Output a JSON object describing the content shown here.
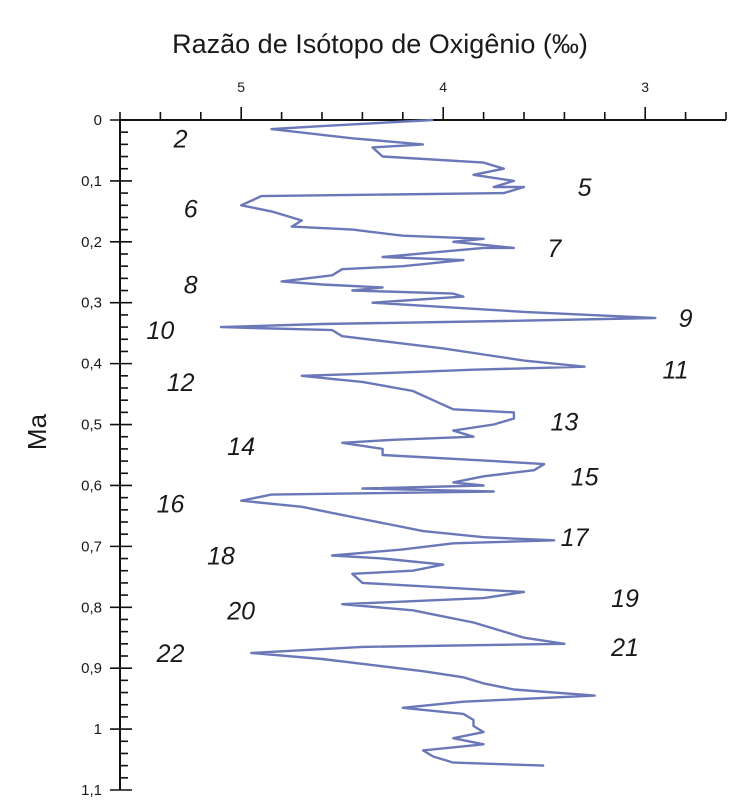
{
  "chart_data": {
    "type": "line",
    "title": "Razão de Isótopo de Oxigênio (‰)",
    "xlabel": "Razão de Isótopo de Oxigênio (‰)",
    "ylabel": "Ma",
    "x_axis": {
      "position": "top",
      "reversed": true,
      "range": [
        5.6,
        2.6
      ],
      "tick_labels": [
        "5",
        "4",
        "3"
      ],
      "tick_values": [
        5,
        4,
        3
      ],
      "minor_step": 0.2
    },
    "y_axis": {
      "reversed": true,
      "range": [
        0,
        1.1
      ],
      "tick_labels": [
        "0",
        "0,1",
        "0,2",
        "0,3",
        "0,4",
        "0,5",
        "0,6",
        "0,7",
        "0,8",
        "0,9",
        "1",
        "1,1"
      ],
      "tick_values": [
        0,
        0.1,
        0.2,
        0.3,
        0.4,
        0.5,
        0.6,
        0.7,
        0.8,
        0.9,
        1.0,
        1.1
      ],
      "minor_step": 0.02
    },
    "grid": false,
    "color": "#6a78b8",
    "series": [
      {
        "points": [
          [
            4.05,
            0.0
          ],
          [
            4.6,
            0.01
          ],
          [
            4.85,
            0.015
          ],
          [
            4.45,
            0.03
          ],
          [
            4.1,
            0.04
          ],
          [
            4.35,
            0.045
          ],
          [
            4.3,
            0.06
          ],
          [
            3.8,
            0.07
          ],
          [
            3.7,
            0.08
          ],
          [
            3.85,
            0.09
          ],
          [
            3.65,
            0.1
          ],
          [
            3.75,
            0.11
          ],
          [
            3.6,
            0.11
          ],
          [
            3.7,
            0.12
          ],
          [
            4.9,
            0.125
          ],
          [
            5.0,
            0.14
          ],
          [
            4.85,
            0.15
          ],
          [
            4.7,
            0.165
          ],
          [
            4.75,
            0.175
          ],
          [
            4.45,
            0.18
          ],
          [
            4.2,
            0.19
          ],
          [
            3.8,
            0.195
          ],
          [
            3.95,
            0.2
          ],
          [
            3.65,
            0.21
          ],
          [
            3.8,
            0.21
          ],
          [
            4.3,
            0.225
          ],
          [
            3.9,
            0.23
          ],
          [
            4.2,
            0.24
          ],
          [
            4.5,
            0.245
          ],
          [
            4.55,
            0.255
          ],
          [
            4.8,
            0.265
          ],
          [
            4.6,
            0.27
          ],
          [
            4.3,
            0.275
          ],
          [
            4.45,
            0.28
          ],
          [
            3.95,
            0.285
          ],
          [
            3.9,
            0.29
          ],
          [
            4.35,
            0.3
          ],
          [
            3.85,
            0.31
          ],
          [
            3.6,
            0.315
          ],
          [
            2.95,
            0.325
          ],
          [
            3.7,
            0.33
          ],
          [
            4.6,
            0.335
          ],
          [
            5.1,
            0.34
          ],
          [
            4.55,
            0.345
          ],
          [
            4.5,
            0.355
          ],
          [
            4.25,
            0.365
          ],
          [
            4.0,
            0.375
          ],
          [
            3.8,
            0.385
          ],
          [
            3.6,
            0.395
          ],
          [
            3.3,
            0.405
          ],
          [
            3.85,
            0.41
          ],
          [
            4.25,
            0.415
          ],
          [
            4.7,
            0.42
          ],
          [
            4.55,
            0.425
          ],
          [
            4.4,
            0.43
          ],
          [
            4.15,
            0.445
          ],
          [
            4.05,
            0.46
          ],
          [
            3.95,
            0.475
          ],
          [
            3.65,
            0.48
          ],
          [
            3.65,
            0.49
          ],
          [
            3.75,
            0.5
          ],
          [
            3.95,
            0.51
          ],
          [
            3.85,
            0.52
          ],
          [
            4.25,
            0.525
          ],
          [
            4.5,
            0.53
          ],
          [
            4.3,
            0.54
          ],
          [
            4.3,
            0.55
          ],
          [
            3.75,
            0.56
          ],
          [
            3.5,
            0.565
          ],
          [
            3.55,
            0.575
          ],
          [
            3.8,
            0.585
          ],
          [
            3.95,
            0.595
          ],
          [
            3.8,
            0.6
          ],
          [
            4.4,
            0.605
          ],
          [
            3.75,
            0.61
          ],
          [
            4.85,
            0.615
          ],
          [
            5.0,
            0.625
          ],
          [
            4.7,
            0.635
          ],
          [
            4.55,
            0.645
          ],
          [
            4.4,
            0.655
          ],
          [
            4.25,
            0.665
          ],
          [
            4.1,
            0.675
          ],
          [
            3.8,
            0.685
          ],
          [
            3.45,
            0.69
          ],
          [
            3.95,
            0.695
          ],
          [
            4.2,
            0.705
          ],
          [
            4.55,
            0.715
          ],
          [
            4.3,
            0.72
          ],
          [
            4.0,
            0.73
          ],
          [
            4.15,
            0.74
          ],
          [
            4.45,
            0.745
          ],
          [
            4.4,
            0.76
          ],
          [
            3.6,
            0.775
          ],
          [
            3.8,
            0.785
          ],
          [
            4.5,
            0.795
          ],
          [
            4.15,
            0.805
          ],
          [
            4.0,
            0.815
          ],
          [
            3.85,
            0.825
          ],
          [
            3.7,
            0.84
          ],
          [
            3.6,
            0.85
          ],
          [
            3.4,
            0.86
          ],
          [
            4.4,
            0.865
          ],
          [
            4.95,
            0.875
          ],
          [
            4.6,
            0.885
          ],
          [
            4.35,
            0.895
          ],
          [
            4.1,
            0.905
          ],
          [
            3.9,
            0.915
          ],
          [
            3.8,
            0.925
          ],
          [
            3.65,
            0.935
          ],
          [
            3.25,
            0.945
          ],
          [
            3.9,
            0.955
          ],
          [
            4.2,
            0.965
          ],
          [
            3.9,
            0.975
          ],
          [
            3.85,
            0.985
          ],
          [
            3.85,
            0.995
          ],
          [
            3.8,
            1.005
          ],
          [
            3.95,
            1.015
          ],
          [
            3.8,
            1.025
          ],
          [
            4.1,
            1.035
          ],
          [
            4.05,
            1.045
          ],
          [
            3.95,
            1.055
          ],
          [
            3.5,
            1.06
          ]
        ]
      }
    ],
    "annotations": [
      {
        "text": "2",
        "x": 5.3,
        "y": 0.03
      },
      {
        "text": "5",
        "x": 3.3,
        "y": 0.11
      },
      {
        "text": "6",
        "x": 5.25,
        "y": 0.145
      },
      {
        "text": "7",
        "x": 3.45,
        "y": 0.21
      },
      {
        "text": "8",
        "x": 5.25,
        "y": 0.27
      },
      {
        "text": "9",
        "x": 2.8,
        "y": 0.325
      },
      {
        "text": "10",
        "x": 5.4,
        "y": 0.345
      },
      {
        "text": "11",
        "x": 2.85,
        "y": 0.41
      },
      {
        "text": "12",
        "x": 5.3,
        "y": 0.43
      },
      {
        "text": "13",
        "x": 3.4,
        "y": 0.495
      },
      {
        "text": "14",
        "x": 5.0,
        "y": 0.535
      },
      {
        "text": "15",
        "x": 3.3,
        "y": 0.585
      },
      {
        "text": "16",
        "x": 5.35,
        "y": 0.63
      },
      {
        "text": "17",
        "x": 3.35,
        "y": 0.685
      },
      {
        "text": "18",
        "x": 5.1,
        "y": 0.715
      },
      {
        "text": "19",
        "x": 3.1,
        "y": 0.785
      },
      {
        "text": "20",
        "x": 5.0,
        "y": 0.805
      },
      {
        "text": "21",
        "x": 3.1,
        "y": 0.865
      },
      {
        "text": "22",
        "x": 5.35,
        "y": 0.875
      }
    ]
  }
}
